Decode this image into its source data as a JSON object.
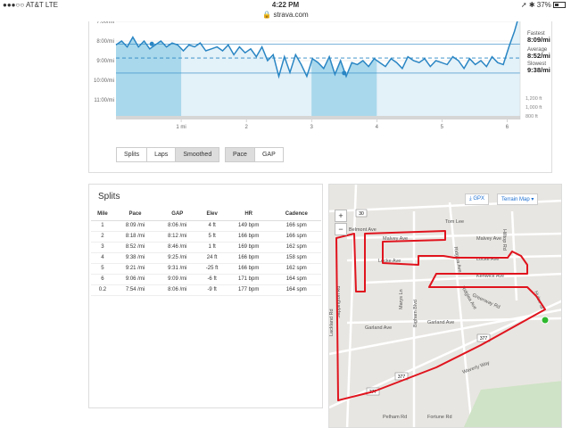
{
  "status": {
    "carrier": "●●●○○ AT&T  LTE",
    "time": "4:22 PM",
    "battery": "37%",
    "battery_level": 0.37,
    "url": "strava.com"
  },
  "chart": {
    "y_labels": [
      "7:00/mi",
      "8:00/mi",
      "9:00/mi",
      "10:00/mi",
      "11:00/mi"
    ],
    "x_labels": [
      "1 mi",
      "2",
      "3",
      "4",
      "5",
      "6"
    ],
    "elev_labels": [
      "1,200 ft",
      "1,000 ft",
      "800 ft"
    ],
    "fastest_label": "Fastest",
    "fastest_value": "8:09/mi",
    "average_label": "Average",
    "average_value": "8:52/mi",
    "slowest_label": "Slowest",
    "slowest_value": "9:38/mi",
    "pace_points": [
      8.2,
      8.0,
      8.3,
      7.8,
      8.3,
      8.0,
      8.4,
      8.2,
      8.0,
      8.3,
      8.1,
      8.2,
      8.5,
      8.2,
      8.3,
      8.1,
      8.5,
      8.4,
      8.3,
      8.5,
      8.2,
      8.7,
      8.3,
      8.6,
      8.4,
      8.8,
      8.3,
      9.0,
      8.7,
      9.8,
      8.8,
      9.6,
      8.7,
      9.2,
      9.8,
      8.9,
      9.1,
      9.4,
      8.8,
      9.7,
      9.0,
      9.8,
      9.1,
      9.2,
      9.0,
      9.3,
      8.9,
      9.1,
      9.3,
      8.9,
      9.1,
      9.4,
      8.8,
      9.0,
      9.1,
      8.9,
      9.3,
      9.0,
      9.1,
      9.2,
      8.8,
      9.0,
      9.4,
      8.9,
      9.2,
      9.0,
      9.3,
      8.8,
      9.1,
      9.2,
      8.3,
      7.5,
      6.5
    ],
    "highlight_start_mi": 3,
    "highlight_end_mi": 4
  },
  "buttons": {
    "splits": "Splits",
    "laps": "Laps",
    "smoothed": "Smoothed",
    "pace": "Pace",
    "gap": "GAP"
  },
  "splits": {
    "title": "Splits",
    "headers": [
      "Mile",
      "Pace",
      "GAP",
      "Elev",
      "HR",
      "Cadence"
    ],
    "rows": [
      [
        "1",
        "8:09 /mi",
        "8:06 /mi",
        "4 ft",
        "149 bpm",
        "166 spm"
      ],
      [
        "2",
        "8:18 /mi",
        "8:12 /mi",
        "5 ft",
        "166 bpm",
        "166 spm"
      ],
      [
        "3",
        "8:52 /mi",
        "8:46 /mi",
        "1 ft",
        "169 bpm",
        "162 spm"
      ],
      [
        "4",
        "9:38 /mi",
        "9:25 /mi",
        "24 ft",
        "166 bpm",
        "158 spm"
      ],
      [
        "5",
        "9:21 /mi",
        "9:31 /mi",
        "-25 ft",
        "166 bpm",
        "162 spm"
      ],
      [
        "6",
        "9:06 /mi",
        "9:09 /mi",
        "-6 ft",
        "171 bpm",
        "164 spm"
      ],
      [
        "0.2",
        "7:54 /mi",
        "8:06 /mi",
        "-9 ft",
        "177 bpm",
        "164 spm"
      ]
    ]
  },
  "map": {
    "gpx_label": "GPX",
    "terrain_label": "Terrain Map",
    "zoom_in": "+",
    "zoom_out": "−",
    "streets": [
      "Tom Lee",
      "Belmont Ave",
      "Malvey Ave",
      "Malvey Ave",
      "Locke Ave",
      "Locke Ave",
      "Kenwick Ave",
      "Ridglea Ave",
      "Ridglea Ave",
      "Garland Ave",
      "Garland Ave",
      "Greenway Rd",
      "Waverly Way",
      "Fortune Rd",
      "Pelham Rd",
      "Bigham Blvd",
      "Marys Ln",
      "Sappington Rd",
      "Lackland Rd",
      "Hulen St",
      "Hilltop Rd"
    ],
    "route_color": "#e0141e",
    "start_color": "#2eb82e",
    "shields": [
      "30",
      "377",
      "377",
      "377"
    ]
  }
}
